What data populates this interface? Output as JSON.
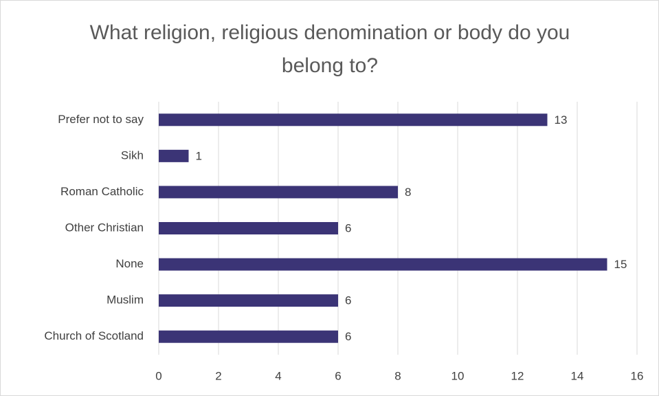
{
  "chart_data": {
    "type": "bar",
    "orientation": "horizontal",
    "title": "What religion, religious denomination or body do you belong to?",
    "categories": [
      "Prefer not to say",
      "Sikh",
      "Roman Catholic",
      "Other Christian",
      "None",
      "Muslim",
      "Church of Scotland"
    ],
    "values": [
      13,
      1,
      8,
      6,
      15,
      6,
      6
    ],
    "color": "#3b3476",
    "xlim": [
      0,
      16
    ],
    "xticks": [
      0,
      2,
      4,
      6,
      8,
      10,
      12,
      14,
      16
    ],
    "grid": true
  }
}
